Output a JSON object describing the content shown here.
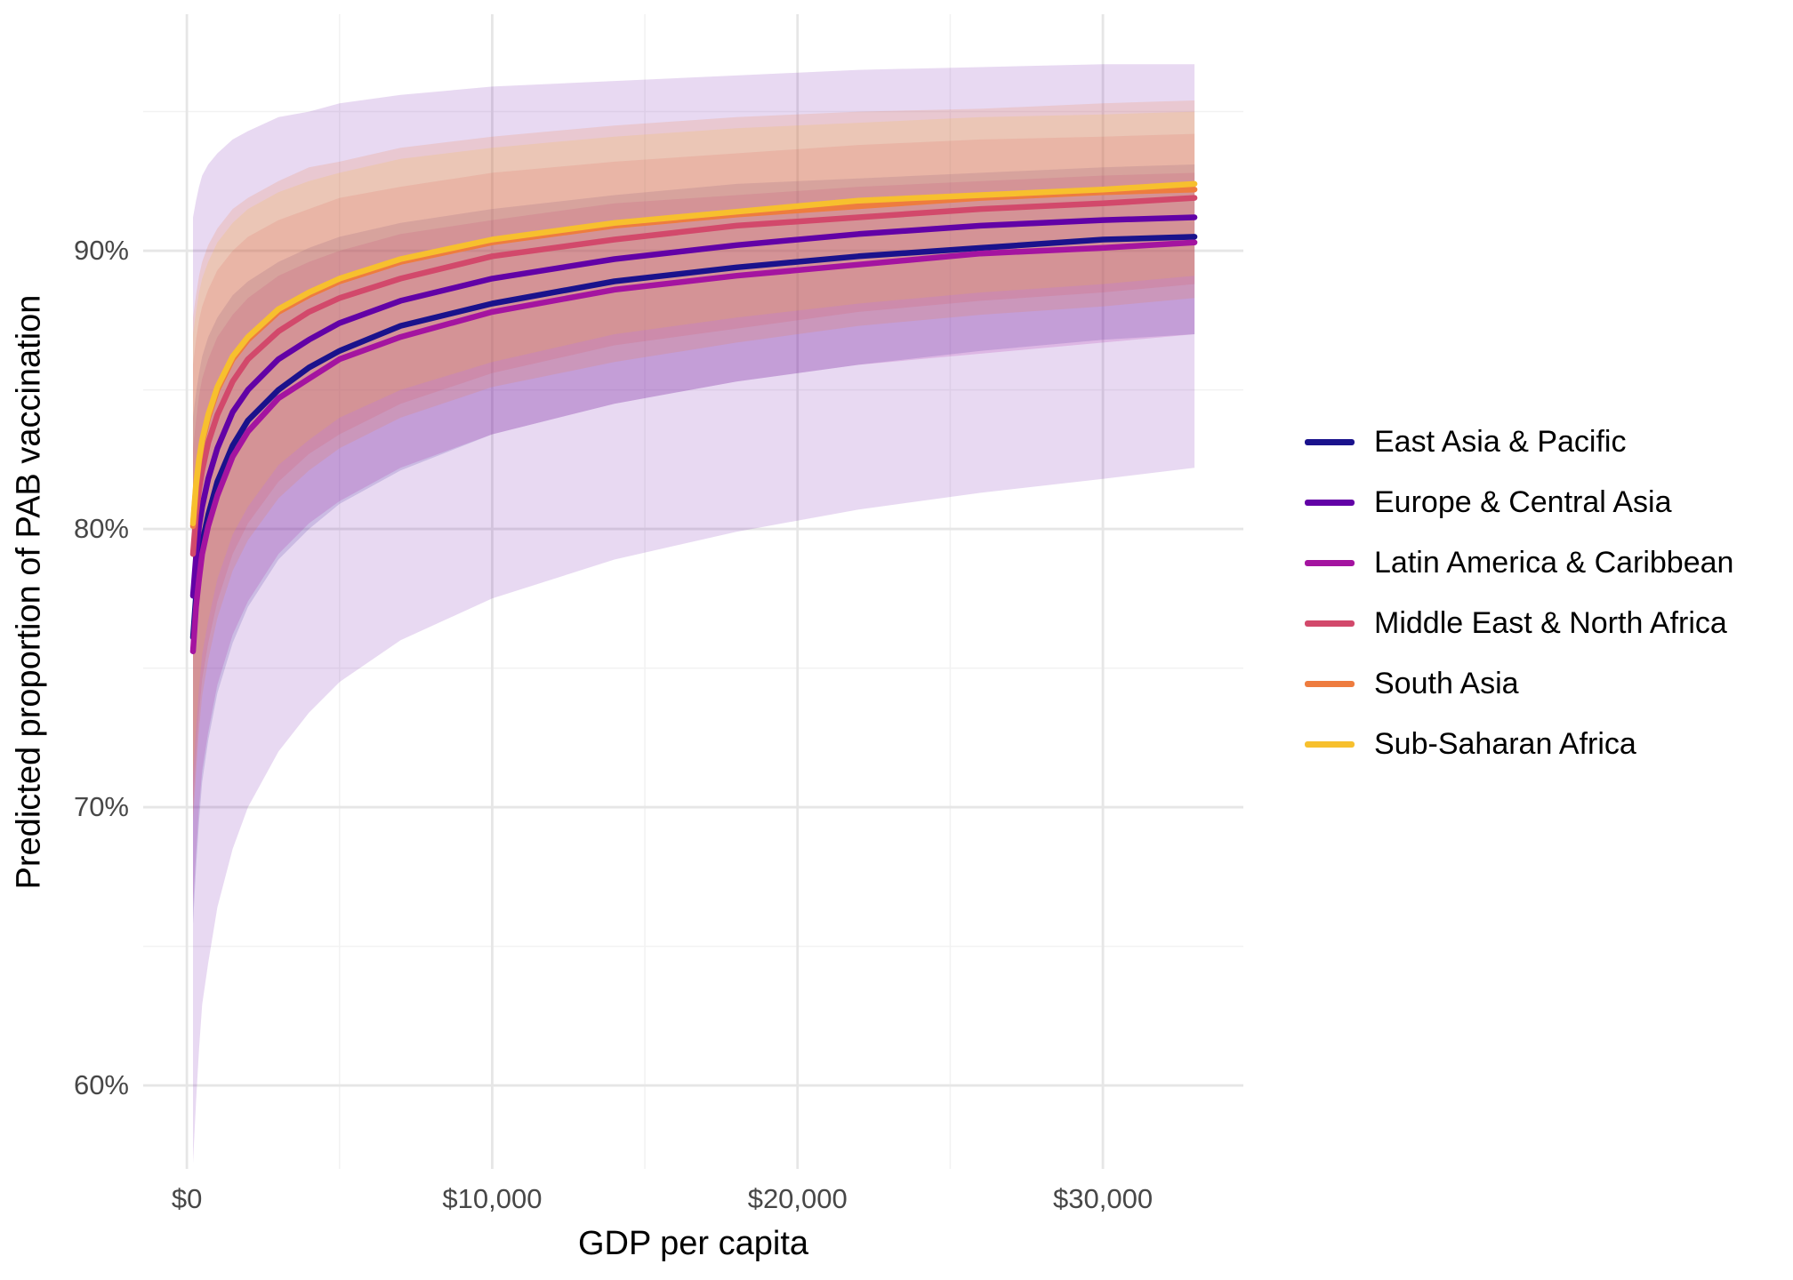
{
  "chart_data": {
    "type": "line",
    "title": "",
    "xlabel": "GDP per capita",
    "ylabel": "Predicted proportion of PAB vaccination",
    "legend_position": "right",
    "grid": true,
    "xlim": [
      -1430,
      34600
    ],
    "ylim": [
      57.0,
      98.5
    ],
    "x_ticks": [
      {
        "value": 0,
        "label": "$0"
      },
      {
        "value": 10000,
        "label": "$10,000"
      },
      {
        "value": 20000,
        "label": "$20,000"
      },
      {
        "value": 30000,
        "label": "$30,000"
      }
    ],
    "y_ticks": [
      {
        "value": 60,
        "label": "60%"
      },
      {
        "value": 70,
        "label": "70%"
      },
      {
        "value": 80,
        "label": "80%"
      },
      {
        "value": 90,
        "label": "90%"
      }
    ],
    "x_minor": [
      5000,
      15000,
      25000
    ],
    "y_minor": [
      65,
      75,
      85,
      95
    ],
    "grid_major_color": "#e6e6e6",
    "grid_minor_color": "#f2f2f2",
    "tick_label_color": "#474747",
    "x": [
      200,
      300,
      400,
      500,
      700,
      1000,
      1500,
      2000,
      3000,
      4000,
      5000,
      7000,
      10000,
      14000,
      18000,
      22000,
      26000,
      30000,
      33000
    ],
    "units": {
      "x": "USD",
      "y": "percent"
    },
    "series": [
      {
        "name": "East Asia & Pacific",
        "color": "#1a128c",
        "ribbon_opacity": 0.15,
        "center": [
          76.1,
          77.6,
          78.7,
          79.5,
          80.5,
          81.7,
          83.0,
          83.9,
          85.0,
          85.8,
          86.4,
          87.3,
          88.1,
          88.9,
          89.4,
          89.8,
          90.1,
          90.4,
          90.5
        ],
        "lower": [
          65.8,
          67.8,
          69.5,
          70.9,
          72.4,
          74.1,
          75.9,
          77.2,
          78.9,
          80.0,
          80.9,
          82.1,
          83.4,
          84.5,
          85.3,
          85.9,
          86.4,
          86.8,
          87.0
        ],
        "upper": [
          84.0,
          84.9,
          85.6,
          86.2,
          86.9,
          87.6,
          88.4,
          88.9,
          89.6,
          90.1,
          90.5,
          91.0,
          91.5,
          92.0,
          92.4,
          92.6,
          92.8,
          93.0,
          93.1
        ]
      },
      {
        "name": "Europe & Central Asia",
        "color": "#6202a6",
        "ribbon_opacity": 0.15,
        "center": [
          77.6,
          79.0,
          80.1,
          80.8,
          81.8,
          82.9,
          84.2,
          85.0,
          86.1,
          86.8,
          87.4,
          88.2,
          89.0,
          89.7,
          90.2,
          90.6,
          90.9,
          91.1,
          91.2
        ],
        "lower": [
          57.2,
          59.4,
          61.3,
          62.9,
          64.4,
          66.4,
          68.5,
          70.0,
          72.0,
          73.4,
          74.5,
          76.0,
          77.5,
          78.9,
          79.9,
          80.7,
          81.3,
          81.8,
          82.2
        ],
        "upper": [
          91.2,
          91.8,
          92.3,
          92.7,
          93.1,
          93.5,
          94.0,
          94.3,
          94.8,
          95.0,
          95.3,
          95.6,
          95.9,
          96.1,
          96.3,
          96.5,
          96.6,
          96.7,
          96.7
        ]
      },
      {
        "name": "Latin America & Caribbean",
        "color": "#a414a0",
        "ribbon_opacity": 0.17,
        "center": [
          75.6,
          77.2,
          78.2,
          79.1,
          80.1,
          81.2,
          82.6,
          83.5,
          84.7,
          85.4,
          86.1,
          86.9,
          87.8,
          88.6,
          89.1,
          89.5,
          89.9,
          90.1,
          90.3
        ],
        "lower": [
          66.4,
          68.3,
          70.0,
          71.3,
          72.7,
          74.4,
          76.2,
          77.4,
          79.1,
          80.2,
          81.0,
          82.2,
          83.4,
          84.5,
          85.3,
          85.9,
          86.3,
          86.7,
          87.0
        ],
        "upper": [
          82.9,
          83.9,
          84.8,
          85.4,
          86.1,
          86.9,
          87.7,
          88.3,
          89.1,
          89.6,
          90.0,
          90.6,
          91.1,
          91.7,
          92.0,
          92.3,
          92.5,
          92.7,
          92.8
        ]
      },
      {
        "name": "Middle East & North Africa",
        "color": "#d2496b",
        "ribbon_opacity": 0.17,
        "center": [
          79.1,
          80.5,
          81.4,
          82.1,
          83.1,
          84.1,
          85.3,
          86.1,
          87.1,
          87.8,
          88.3,
          89.0,
          89.8,
          90.4,
          90.9,
          91.2,
          91.5,
          91.7,
          91.9
        ],
        "lower": [
          70.0,
          71.8,
          73.4,
          74.6,
          75.9,
          77.4,
          79.1,
          80.2,
          81.7,
          82.7,
          83.4,
          84.5,
          85.6,
          86.6,
          87.2,
          87.8,
          88.2,
          88.5,
          88.8
        ],
        "upper": [
          85.9,
          86.8,
          87.5,
          88.0,
          88.6,
          89.3,
          90.0,
          90.5,
          91.1,
          91.5,
          91.9,
          92.3,
          92.8,
          93.2,
          93.5,
          93.8,
          94.0,
          94.1,
          94.2
        ]
      },
      {
        "name": "South Asia",
        "color": "#ee7c3f",
        "ribbon_opacity": 0.18,
        "center": [
          80.1,
          81.5,
          82.4,
          83.1,
          84.0,
          85.0,
          86.1,
          86.8,
          87.8,
          88.4,
          88.9,
          89.6,
          90.3,
          90.9,
          91.3,
          91.6,
          91.9,
          92.1,
          92.2
        ],
        "lower": [
          69.5,
          71.2,
          72.8,
          74.0,
          75.3,
          76.8,
          78.5,
          79.6,
          81.1,
          82.1,
          82.9,
          84.0,
          85.1,
          86.0,
          86.7,
          87.3,
          87.7,
          88.0,
          88.3
        ],
        "upper": [
          87.6,
          88.4,
          89.1,
          89.6,
          90.2,
          90.8,
          91.5,
          91.9,
          92.5,
          93.0,
          93.2,
          93.7,
          94.1,
          94.5,
          94.8,
          95.0,
          95.1,
          95.3,
          95.4
        ]
      },
      {
        "name": "Sub-Saharan Africa",
        "color": "#f7c02e",
        "ribbon_opacity": 0.16,
        "center": [
          80.2,
          81.6,
          82.5,
          83.2,
          84.1,
          85.1,
          86.2,
          86.9,
          87.9,
          88.5,
          89.0,
          89.7,
          90.4,
          91.0,
          91.4,
          91.8,
          92.0,
          92.2,
          92.4
        ],
        "lower": [
          71.1,
          72.8,
          74.3,
          75.5,
          76.7,
          78.2,
          79.8,
          80.8,
          82.3,
          83.2,
          84.0,
          85.0,
          86.0,
          87.0,
          87.6,
          88.1,
          88.5,
          88.8,
          89.1
        ],
        "upper": [
          87.0,
          87.8,
          88.5,
          89.0,
          89.6,
          90.3,
          91.0,
          91.5,
          92.1,
          92.5,
          92.8,
          93.3,
          93.7,
          94.1,
          94.4,
          94.6,
          94.8,
          94.9,
          95.0
        ]
      }
    ]
  }
}
